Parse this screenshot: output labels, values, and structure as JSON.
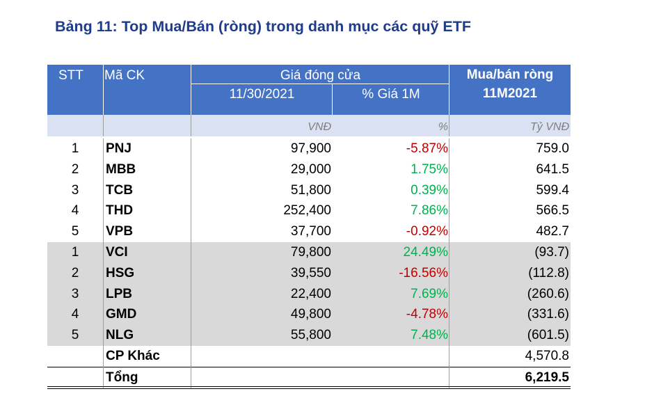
{
  "title": "Bảng 11: Top Mua/Bán (ròng) trong danh mục các quỹ ETF",
  "header": {
    "stt": "STT",
    "ticker": "Mã CK",
    "close_group": "Giá đóng cửa",
    "date": "11/30/2021",
    "pct": "% Giá 1M",
    "net_line1": "Mua/bán ròng",
    "net_line2": "11M2021"
  },
  "units": {
    "price": "VNĐ",
    "pct": "%",
    "net": "Tỷ VNĐ"
  },
  "rows": [
    {
      "stt": "1",
      "ticker": "PNJ",
      "price": "97,900",
      "pct": "-5.87%",
      "net": "759.0"
    },
    {
      "stt": "2",
      "ticker": "MBB",
      "price": "29,000",
      "pct": "1.75%",
      "net": "641.5"
    },
    {
      "stt": "3",
      "ticker": "TCB",
      "price": "51,800",
      "pct": "0.39%",
      "net": "599.4"
    },
    {
      "stt": "4",
      "ticker": "THD",
      "price": "252,400",
      "pct": "7.86%",
      "net": "566.5"
    },
    {
      "stt": "5",
      "ticker": "VPB",
      "price": "37,700",
      "pct": "-0.92%",
      "net": "482.7"
    },
    {
      "stt": "1",
      "ticker": "VCI",
      "price": "79,800",
      "pct": "24.49%",
      "net": "(93.7)"
    },
    {
      "stt": "2",
      "ticker": "HSG",
      "price": "39,550",
      "pct": "-16.56%",
      "net": "(112.8)"
    },
    {
      "stt": "3",
      "ticker": "LPB",
      "price": "22,400",
      "pct": "7.69%",
      "net": "(260.6)"
    },
    {
      "stt": "4",
      "ticker": "GMD",
      "price": "49,800",
      "pct": "-4.78%",
      "net": "(331.6)"
    },
    {
      "stt": "5",
      "ticker": "NLG",
      "price": "55,800",
      "pct": "7.48%",
      "net": "(601.5)"
    }
  ],
  "other": {
    "label": "CP Khác",
    "net": "4,570.8"
  },
  "total": {
    "label": "Tổng",
    "net": "6,219.5"
  },
  "colors": {
    "header_bg": "#4472c4",
    "units_bg": "#d9e1f2",
    "sell_bg": "#d9d9d9",
    "negative": "#c00000",
    "positive": "#00b050",
    "title": "#1f3c88"
  }
}
